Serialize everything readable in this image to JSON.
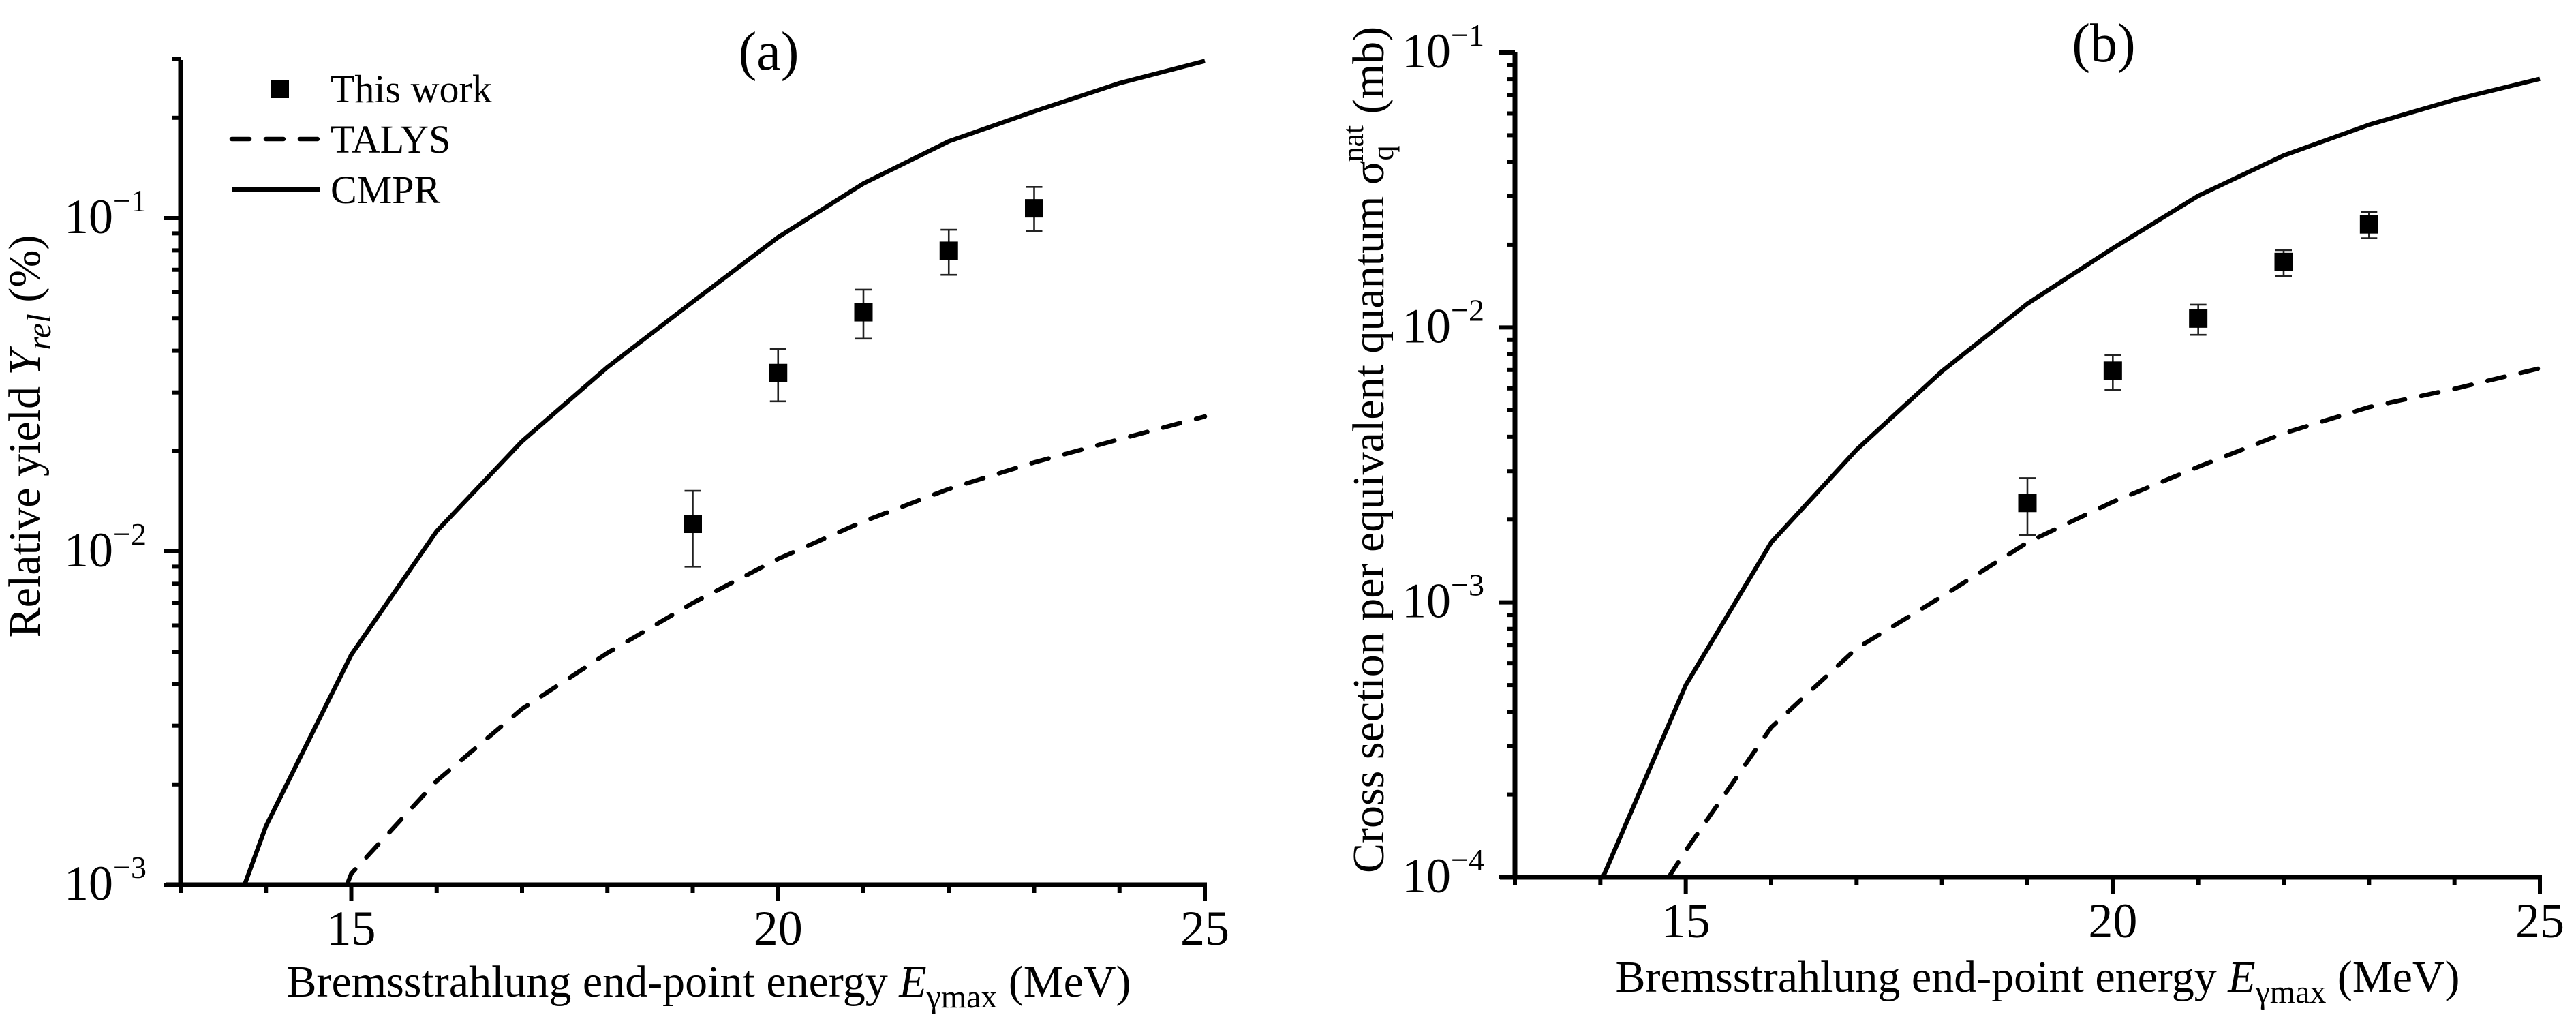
{
  "chart_data": [
    {
      "id": "a",
      "type": "scatter",
      "title": "(a)",
      "xlabel": "Bremsstrahlung end-point energy Eγmax (MeV)",
      "xlabel_parts": {
        "main": "Bremsstrahlung end-point energy ",
        "var": "E",
        "sub": "γmax",
        "unit": " (MeV)"
      },
      "ylabel": "Relative yield Yrel (%)",
      "ylabel_parts": {
        "main": "Relative yield ",
        "var": "Y",
        "sub": "rel",
        "unit": " (%)"
      },
      "xlim": [
        13,
        25
      ],
      "ylim": [
        0.001,
        0.3
      ],
      "yscale": "log",
      "x_ticks": [
        15,
        20,
        25
      ],
      "x_tick_labels": [
        "15",
        "20",
        "25"
      ],
      "x_minor_ticks": [
        13,
        14,
        16,
        17,
        18,
        19,
        21,
        22,
        23,
        24
      ],
      "y_ticks": [
        -3,
        -2,
        -1
      ],
      "y_tick_labels": [
        {
          "base": "10",
          "exp": "−3"
        },
        {
          "base": "10",
          "exp": "−2"
        },
        {
          "base": "10",
          "exp": "−1"
        }
      ],
      "grid": false,
      "legend": {
        "placement": "top-left",
        "entries": [
          {
            "label": "This work",
            "style": "square-marker"
          },
          {
            "label": "TALYS",
            "style": "dashed-line"
          },
          {
            "label": "CMPR",
            "style": "solid-line"
          }
        ]
      },
      "series": [
        {
          "name": "This work",
          "kind": "points-with-errors",
          "x": [
            19,
            20,
            21,
            22,
            23
          ],
          "y": [
            0.0121,
            0.0343,
            0.0522,
            0.0798,
            0.107
          ],
          "y_err_low": [
            0.009,
            0.0282,
            0.0435,
            0.0676,
            0.0914
          ],
          "y_err_high": [
            0.0152,
            0.0405,
            0.061,
            0.0923,
            0.124
          ]
        },
        {
          "name": "TALYS",
          "kind": "dashed-line",
          "x": [
            14.95,
            15,
            16,
            17,
            18,
            19,
            20,
            21,
            22,
            23,
            24,
            25
          ],
          "y": [
            0.001,
            0.00108,
            0.00205,
            0.00337,
            0.00496,
            0.007,
            0.0095,
            0.0123,
            0.0154,
            0.0185,
            0.0217,
            0.0254
          ]
        },
        {
          "name": "CMPR",
          "kind": "solid-line",
          "x": [
            13.75,
            14,
            15,
            16,
            17,
            18,
            19,
            20,
            21,
            22,
            23,
            24,
            25
          ],
          "y": [
            0.001,
            0.0015,
            0.0049,
            0.0115,
            0.0214,
            0.0357,
            0.0561,
            0.0876,
            0.127,
            0.17,
            0.209,
            0.254,
            0.296
          ]
        }
      ]
    },
    {
      "id": "b",
      "type": "scatter",
      "title": "(b)",
      "xlabel": "Bremsstrahlung end-point energy Eγmax (MeV)",
      "xlabel_parts": {
        "main": "Bremsstrahlung end-point energy ",
        "var": "E",
        "sub": "γmax",
        "unit": " (MeV)"
      },
      "ylabel": "Cross section per equivalent quantum σq^nat (mb)",
      "ylabel_parts": {
        "main": "Cross section per equivalent quantum ",
        "var": "σ",
        "sub": "q",
        "sup": "nat",
        "unit": " (mb)"
      },
      "xlim": [
        13,
        25
      ],
      "ylim": [
        0.0001,
        0.1
      ],
      "yscale": "log",
      "x_ticks": [
        15,
        20,
        25
      ],
      "x_tick_labels": [
        "15",
        "20",
        "25"
      ],
      "x_minor_ticks": [
        13,
        14,
        16,
        17,
        18,
        19,
        21,
        22,
        23,
        24
      ],
      "y_ticks": [
        -4,
        -3,
        -2,
        -1
      ],
      "y_tick_labels": [
        {
          "base": "10",
          "exp": "−4"
        },
        {
          "base": "10",
          "exp": "−3"
        },
        {
          "base": "10",
          "exp": "−2"
        },
        {
          "base": "10",
          "exp": "−1"
        }
      ],
      "grid": false,
      "legend": null,
      "series": [
        {
          "name": "This work",
          "kind": "points-with-errors",
          "x": [
            19,
            20,
            21,
            22,
            23
          ],
          "y": [
            0.0023,
            0.00696,
            0.01077,
            0.0173,
            0.0237
          ],
          "y_err_low": [
            0.00176,
            0.00593,
            0.0094,
            0.0154,
            0.0211
          ],
          "y_err_high": [
            0.00283,
            0.00794,
            0.0121,
            0.0191,
            0.0263
          ]
        },
        {
          "name": "TALYS",
          "kind": "dashed-line",
          "x": [
            14.8,
            15,
            16,
            17,
            18,
            19,
            20,
            21,
            22,
            23,
            24,
            25
          ],
          "y": [
            0.0001,
            0.000125,
            0.000351,
            0.00068,
            0.00105,
            0.00165,
            0.00232,
            0.00311,
            0.00412,
            0.00513,
            0.00598,
            0.0071
          ]
        },
        {
          "name": "CMPR",
          "kind": "solid-line",
          "x": [
            14.03,
            15,
            16,
            17,
            18,
            19,
            20,
            21,
            22,
            23,
            24,
            25
          ],
          "y": [
            0.0001,
            0.0005,
            0.00165,
            0.00359,
            0.00693,
            0.0122,
            0.0194,
            0.0301,
            0.0422,
            0.0546,
            0.0673,
            0.0802
          ]
        }
      ]
    }
  ]
}
